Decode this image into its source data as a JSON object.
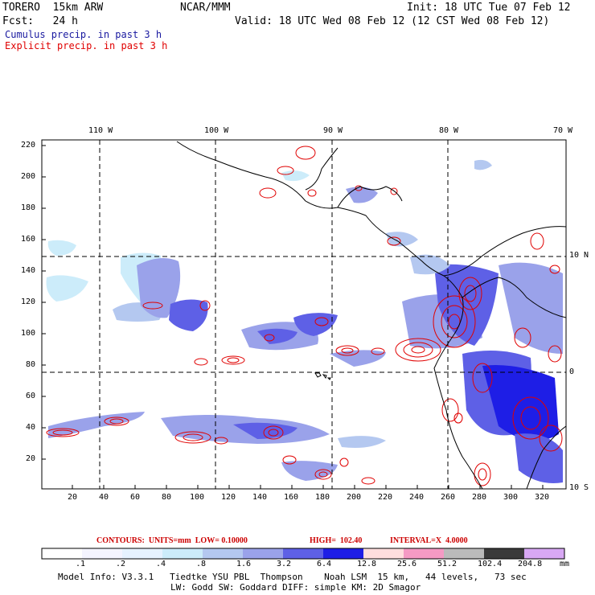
{
  "header": {
    "model": "TORERO  15km ARW",
    "org": "NCAR/MMM",
    "init": "Init: 18 UTC Tue 07 Feb 12",
    "fcst": "Fcst:   24 h",
    "valid": "Valid: 18 UTC Wed 08 Feb 12 (12 CST Wed 08 Feb 12)",
    "legend_cumulus": "Cumulus precip. in past 3 h",
    "legend_explicit": "Explicit precip. in past 3 h"
  },
  "axes": {
    "top_lon": [
      "110 W",
      "100 W",
      "90 W",
      "80 W",
      "70 W"
    ],
    "right_lat": [
      "10 N",
      "0",
      "10 S"
    ],
    "left_grid": [
      "220",
      "200",
      "180",
      "160",
      "140",
      "120",
      "100",
      "80",
      "60",
      "40",
      "20"
    ],
    "bottom_grid": [
      "20",
      "40",
      "60",
      "80",
      "100",
      "120",
      "140",
      "160",
      "180",
      "200",
      "220",
      "240",
      "260",
      "280",
      "300",
      "320"
    ]
  },
  "contours_line": {
    "label": "CONTOURS:  UNITS=mm  LOW= 0.10000",
    "high": "HIGH=  102.40",
    "interval": "INTERVAL=X  4.0000"
  },
  "colorbar": {
    "unit": "mm",
    "levels": [
      ".1",
      ".2",
      ".4",
      ".8",
      "1.6",
      "3.2",
      "6.4",
      "12.8",
      "25.6",
      "51.2",
      "102.4",
      "204.8"
    ],
    "colors": [
      "#ffffff",
      "#f4f4ff",
      "#e6f2ff",
      "#ccecfa",
      "#b4c8f0",
      "#9aa2ea",
      "#5e60e6",
      "#1e1ee6",
      "#ffdede",
      "#f59ac4",
      "#bbbbbb",
      "#3a3a3a",
      "#d8a8f4"
    ]
  },
  "footer": {
    "line1": "Model Info: V3.3.1   Tiedtke YSU PBL  Thompson    Noah LSM  15 km,   44 levels,   73 sec",
    "line2": "LW: Godd SW: Goddard DIFF: simple KM: 2D Smagor"
  },
  "colors": {
    "cumulus": "#2b2be0",
    "explicit": "#e00000"
  }
}
